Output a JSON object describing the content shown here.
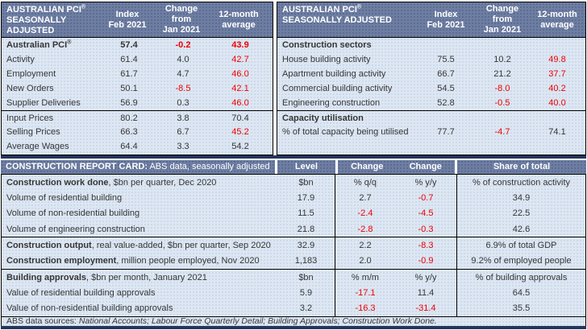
{
  "colors": {
    "header_slate": "#6e7ea2",
    "header_slate_dot": "#5a6b91",
    "row_blue": "#dde7f3",
    "row_blue_dot": "#ccd8ea",
    "navy_band": "#24355b",
    "negative_red": "#f00000",
    "text_dark": "#363636"
  },
  "left_table": {
    "header": {
      "title_pre": "AUSTRALIAN PCI",
      "reg": "®",
      "title_post": " SEASONALLY ADJUSTED",
      "col1": "Index\nFeb 2021",
      "col2": "Change\nfrom\nJan 2021",
      "col3": "12-month\naverage"
    },
    "rows": [
      {
        "label": "Australian PCI",
        "sup": "®",
        "bold": true,
        "values": [
          {
            "v": "57.4"
          },
          {
            "v": "-0.2",
            "red": true
          },
          {
            "v": "43.9",
            "red": true
          }
        ]
      },
      {
        "label": "Activity",
        "values": [
          {
            "v": "61.4"
          },
          {
            "v": "4.0"
          },
          {
            "v": "42.7",
            "red": true
          }
        ]
      },
      {
        "label": "Employment",
        "values": [
          {
            "v": "61.7"
          },
          {
            "v": "4.7"
          },
          {
            "v": "46.0",
            "red": true
          }
        ]
      },
      {
        "label": "New Orders",
        "values": [
          {
            "v": "50.1"
          },
          {
            "v": "-8.5",
            "red": true
          },
          {
            "v": "42.1",
            "red": true
          }
        ]
      },
      {
        "label": "Supplier Deliveries",
        "values": [
          {
            "v": "56.9"
          },
          {
            "v": "0.3"
          },
          {
            "v": "46.0",
            "red": true
          }
        ]
      },
      {
        "label": "Input Prices",
        "divider": true,
        "values": [
          {
            "v": "80.2"
          },
          {
            "v": "3.8"
          },
          {
            "v": "70.4"
          }
        ]
      },
      {
        "label": "Selling Prices",
        "values": [
          {
            "v": "66.3"
          },
          {
            "v": "6.7"
          },
          {
            "v": "45.2",
            "red": true
          }
        ]
      },
      {
        "label": "Average Wages",
        "values": [
          {
            "v": "64.4"
          },
          {
            "v": "3.3"
          },
          {
            "v": "54.2"
          }
        ]
      }
    ]
  },
  "right_table": {
    "header": {
      "title_pre": "AUSTRALIAN PCI",
      "reg": "®",
      "title_post": " SEASONALLY ADJUSTED",
      "col1": "Index\nFeb 2021",
      "col2": "Change\nfrom\nJan 2021",
      "col3": "12-month\naverage"
    },
    "rows": [
      {
        "label": "Construction sectors",
        "bold": true,
        "values": []
      },
      {
        "label": "House building activity",
        "values": [
          {
            "v": "75.5"
          },
          {
            "v": "10.2"
          },
          {
            "v": "49.8",
            "red": true
          }
        ]
      },
      {
        "label": "Apartment building activity",
        "values": [
          {
            "v": "66.7"
          },
          {
            "v": "21.2"
          },
          {
            "v": "37.7",
            "red": true
          }
        ]
      },
      {
        "label": "Commercial building activity",
        "values": [
          {
            "v": "54.5"
          },
          {
            "v": "-8.0",
            "red": true
          },
          {
            "v": "40.2",
            "red": true
          }
        ]
      },
      {
        "label": "Engineering construction",
        "values": [
          {
            "v": "52.8"
          },
          {
            "v": "-0.5",
            "red": true
          },
          {
            "v": "40.0",
            "red": true
          }
        ]
      },
      {
        "label": "Capacity utilisation",
        "bold": true,
        "divider": true,
        "values": []
      },
      {
        "label": "% of total capacity being utilised",
        "values": [
          {
            "v": "77.7"
          },
          {
            "v": "-4.7",
            "red": true
          },
          {
            "v": "74.1"
          }
        ]
      }
    ]
  },
  "report_card": {
    "header": {
      "title_bold": "CONSTRUCTION REPORT CARD:",
      "title_rest": " ABS data, seasonally adjusted",
      "col_level": "Level",
      "col_change1": "Change",
      "col_change2": "Change",
      "col_share": "Share of total"
    },
    "rows": [
      {
        "label_bold": "Construction work done",
        "label_rest": ", $bn per quarter, Dec 2020",
        "values": [
          {
            "v": "$bn"
          },
          {
            "v": "% q/q"
          },
          {
            "v": "% y/y"
          },
          {
            "v": "% of construction activity"
          }
        ]
      },
      {
        "label_rest": "Volume of residential building",
        "values": [
          {
            "v": "17.9"
          },
          {
            "v": "2.7"
          },
          {
            "v": "-0.7",
            "red": true
          },
          {
            "v": "34.9"
          }
        ]
      },
      {
        "label_rest": "Volume of non-residential building",
        "values": [
          {
            "v": "11.5"
          },
          {
            "v": "-2.4",
            "red": true
          },
          {
            "v": "-4.5",
            "red": true
          },
          {
            "v": "22.5"
          }
        ]
      },
      {
        "label_rest": "Volume of engineering construction",
        "values": [
          {
            "v": "21.8"
          },
          {
            "v": "-2.8",
            "red": true
          },
          {
            "v": "-0.3",
            "red": true
          },
          {
            "v": "42.6"
          }
        ]
      },
      {
        "divider": true,
        "label_bold": "Construction output",
        "label_rest": ", real value-added, $bn per quarter, Sep 2020",
        "values": [
          {
            "v": "32.9"
          },
          {
            "v": "2.2"
          },
          {
            "v": "-8.3",
            "red": true
          },
          {
            "v": "6.9% of total GDP"
          }
        ]
      },
      {
        "label_bold": "Construction employment",
        "label_rest": ", million people employed, Nov 2020",
        "values": [
          {
            "v": "1,183"
          },
          {
            "v": "2.0"
          },
          {
            "v": "-0.9",
            "red": true
          },
          {
            "v": "9.2% of employed people"
          }
        ]
      },
      {
        "divider": true,
        "label_bold": "Building approvals",
        "label_rest": ", $bn per month, January 2021",
        "values": [
          {
            "v": "$bn"
          },
          {
            "v": "% m/m"
          },
          {
            "v": "% y/y"
          },
          {
            "v": "% of building approvals"
          }
        ]
      },
      {
        "label_rest": "Value of residential building approvals",
        "values": [
          {
            "v": "5.9"
          },
          {
            "v": "-17.1",
            "red": true
          },
          {
            "v": "11.4"
          },
          {
            "v": "64.5"
          }
        ]
      },
      {
        "label_rest": "Value of non-residential building approvals",
        "values": [
          {
            "v": "3.2"
          },
          {
            "v": "-16.3",
            "red": true
          },
          {
            "v": "-31.4",
            "red": true
          },
          {
            "v": "35.5"
          }
        ]
      }
    ],
    "footer": {
      "prefix": "ABS data sources: ",
      "sources_italic": "National Accounts; Labour Force Quarterly Detail; Building Approvals; Construction Work Done."
    }
  }
}
